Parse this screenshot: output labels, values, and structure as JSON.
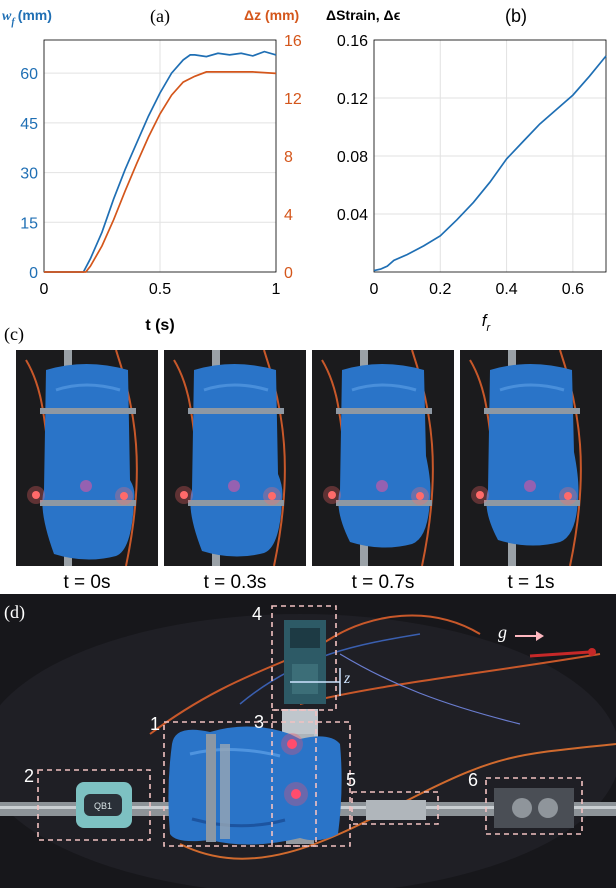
{
  "chart_data": [
    {
      "type": "line",
      "panel": "(a)",
      "ylabel_left": "(mm)",
      "ylabel_left_symbol": "w",
      "ylabel_left_sub": "f",
      "ylabel_right": "Δz (mm)",
      "xlabel": "t (s)",
      "xlim": [
        0,
        1
      ],
      "ylim_left": [
        0,
        70
      ],
      "ylim_right": [
        0,
        16
      ],
      "xticks": [
        "0",
        "0.5",
        "1"
      ],
      "yticks_left": [
        "0",
        "15",
        "30",
        "45",
        "60"
      ],
      "yticks_right": [
        "0",
        "4",
        "8",
        "12",
        "16"
      ],
      "grid": true,
      "series": [
        {
          "axis": "left",
          "color": "#1f6fb4",
          "x": [
            0,
            0.1,
            0.17,
            0.2,
            0.25,
            0.3,
            0.35,
            0.4,
            0.45,
            0.5,
            0.55,
            0.6,
            0.63,
            0.65,
            0.7,
            0.75,
            0.8,
            0.85,
            0.9,
            0.95,
            1.0
          ],
          "y": [
            0,
            0,
            0,
            4,
            12,
            22,
            31,
            39,
            47,
            54,
            60,
            64,
            65.5,
            65.5,
            65,
            66,
            65.5,
            66,
            65.2,
            66.5,
            65.5
          ]
        },
        {
          "axis": "right",
          "color": "#d4561b",
          "x": [
            0,
            0.1,
            0.18,
            0.2,
            0.25,
            0.3,
            0.35,
            0.4,
            0.45,
            0.5,
            0.55,
            0.6,
            0.65,
            0.7,
            0.8,
            0.9,
            1.0
          ],
          "y": [
            0,
            0,
            0,
            0.4,
            1.8,
            3.6,
            5.6,
            7.5,
            9.3,
            10.9,
            12.2,
            13.1,
            13.5,
            13.8,
            13.8,
            13.8,
            13.7
          ]
        }
      ]
    },
    {
      "type": "line",
      "panel": "(b)",
      "ylabel": "ΔStrain, Δϵ",
      "xlabel": "f",
      "xlabel_sub": "r",
      "xlim": [
        0,
        0.7
      ],
      "ylim": [
        0,
        0.16
      ],
      "xticks": [
        "0",
        "0.2",
        "0.4",
        "0.6"
      ],
      "yticks": [
        "0.04",
        "0.08",
        "0.12",
        "0.16"
      ],
      "grid": true,
      "series": [
        {
          "color": "#1f6fb4",
          "x": [
            0,
            0.02,
            0.04,
            0.06,
            0.1,
            0.15,
            0.2,
            0.25,
            0.3,
            0.35,
            0.4,
            0.45,
            0.5,
            0.55,
            0.6,
            0.65,
            0.7
          ],
          "y": [
            0.001,
            0.002,
            0.004,
            0.008,
            0.012,
            0.018,
            0.025,
            0.036,
            0.048,
            0.062,
            0.078,
            0.09,
            0.102,
            0.112,
            0.122,
            0.135,
            0.149
          ]
        }
      ]
    }
  ],
  "panel_c": {
    "label": "(c)",
    "captions": [
      "t = 0s",
      "t = 0.3s",
      "t = 0.7s",
      "t = 1s"
    ]
  },
  "panel_d": {
    "label": "(d)",
    "numbers": [
      "1",
      "2",
      "3",
      "4",
      "5",
      "6"
    ],
    "gravity_label": "g",
    "z_label": "z",
    "device_text": "QB1"
  }
}
